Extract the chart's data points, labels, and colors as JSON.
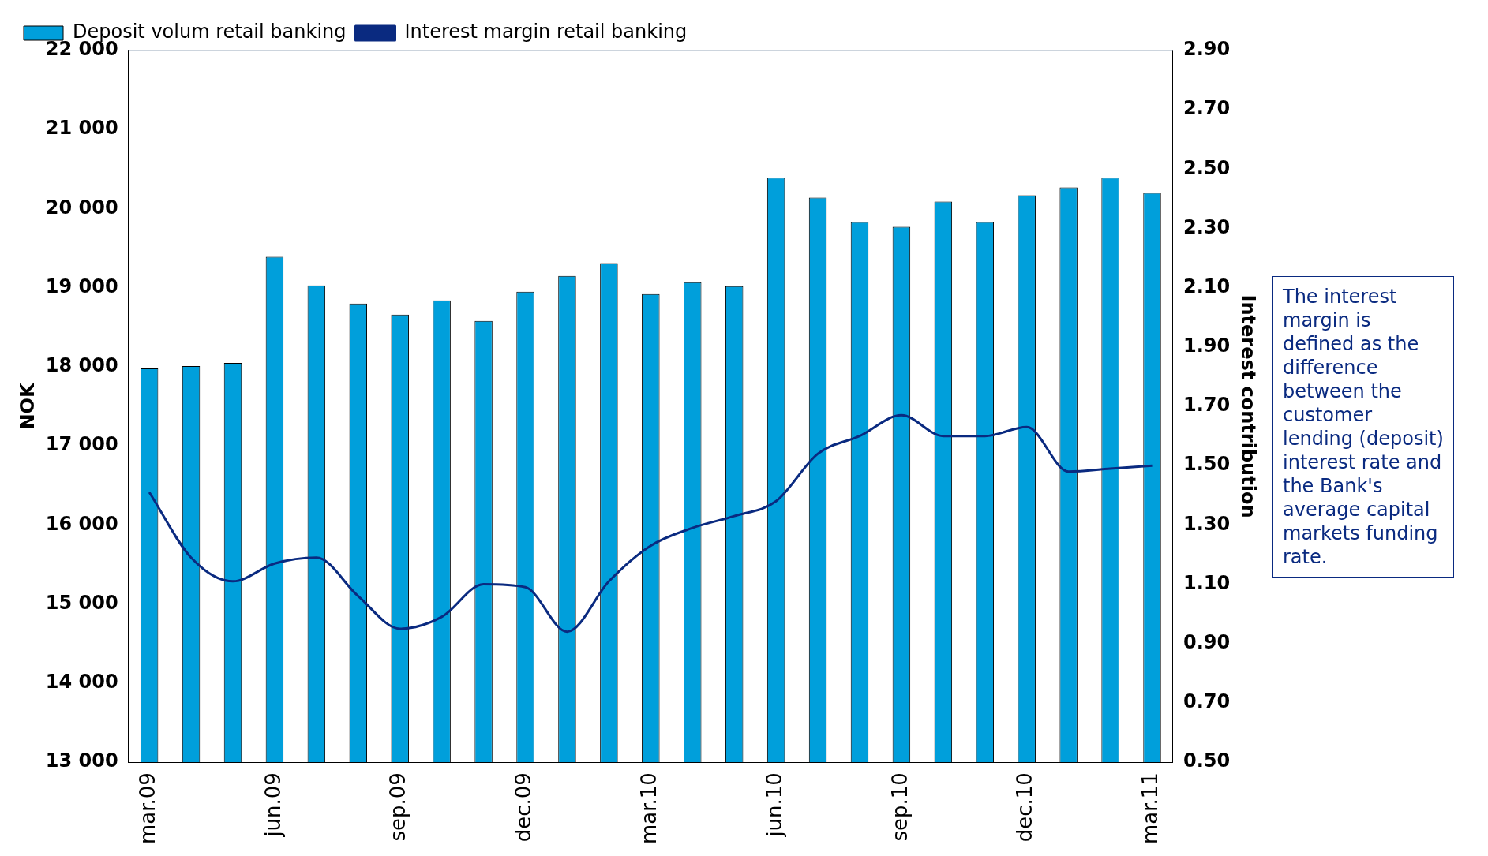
{
  "chart_data": {
    "type": "bar",
    "ylabel": "NOK",
    "y2label": "Interest contribution",
    "categories": [
      "mar.09",
      null,
      null,
      "jun.09",
      null,
      null,
      "sep.09",
      null,
      null,
      "dec.09",
      null,
      null,
      "mar.10",
      null,
      null,
      "jun.10",
      null,
      null,
      "sep.10",
      null,
      null,
      "dec.10",
      null,
      null,
      "mar.11"
    ],
    "series": [
      {
        "name": "Deposit volum retail banking",
        "color": "#009fdb",
        "values": [
          17980,
          18010,
          18050,
          19390,
          19030,
          18800,
          18660,
          18840,
          18580,
          18950,
          19150,
          19310,
          18920,
          19070,
          19020,
          20390,
          20140,
          19830,
          19770,
          20090,
          19830,
          20170,
          20270,
          20390,
          20200
        ]
      },
      {
        "name": "Interest margin retail banking",
        "type": "line",
        "axis": "y2",
        "color": "#0a2a80",
        "values": [
          1.41,
          1.19,
          1.11,
          1.17,
          1.19,
          1.06,
          0.95,
          0.99,
          1.1,
          1.09,
          0.94,
          1.11,
          1.23,
          1.29,
          1.33,
          1.38,
          1.54,
          1.6,
          1.67,
          1.6,
          1.6,
          1.63,
          1.48,
          1.49,
          1.5
        ]
      }
    ],
    "ylim": [
      13000,
      22000
    ],
    "yticks": [
      {
        "value": 13000,
        "label": "13 000"
      },
      {
        "value": 14000,
        "label": "14 000"
      },
      {
        "value": 15000,
        "label": "15 000"
      },
      {
        "value": 16000,
        "label": "16 000"
      },
      {
        "value": 17000,
        "label": "17 000"
      },
      {
        "value": 18000,
        "label": "18 000"
      },
      {
        "value": 19000,
        "label": "19 000"
      },
      {
        "value": 20000,
        "label": "20 000"
      },
      {
        "value": 21000,
        "label": "21 000"
      },
      {
        "value": 22000,
        "label": "22 000"
      }
    ],
    "y2lim": [
      0.5,
      2.9
    ],
    "y2ticks": [
      {
        "value": 0.5,
        "label": "0.50"
      },
      {
        "value": 0.7,
        "label": "0.70"
      },
      {
        "value": 0.9,
        "label": "0.90"
      },
      {
        "value": 1.1,
        "label": "1.10"
      },
      {
        "value": 1.3,
        "label": "1.30"
      },
      {
        "value": 1.5,
        "label": "1.50"
      },
      {
        "value": 1.7,
        "label": "1.70"
      },
      {
        "value": 1.9,
        "label": "1.90"
      },
      {
        "value": 2.1,
        "label": "2.10"
      },
      {
        "value": 2.3,
        "label": "2.30"
      },
      {
        "value": 2.5,
        "label": "2.50"
      },
      {
        "value": 2.7,
        "label": "2.70"
      },
      {
        "value": 2.9,
        "label": "2.90"
      }
    ],
    "legend": "top left",
    "grid": false,
    "marker": "none",
    "annotations": [
      "The interest margin is defined as the difference between the customer lending (deposit) interest rate and the Bank's average capital markets funding rate."
    ]
  }
}
